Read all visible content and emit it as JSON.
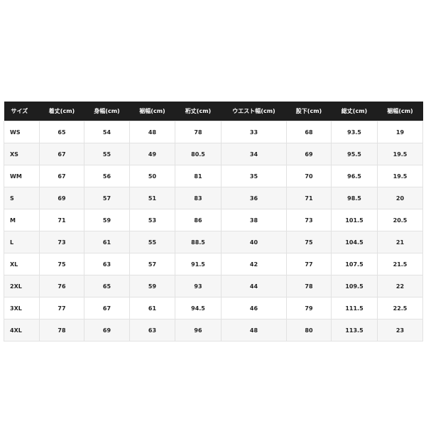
{
  "headers": [
    "サイズ",
    "着丈(cm)",
    "身幅(cm)",
    "裾幅(cm)",
    "裄丈(cm)",
    "ウエスト幅(cm)",
    "股下(cm)",
    "総丈(cm)",
    "裾幅(cm)"
  ],
  "rows": [
    [
      "WS",
      "65",
      "54",
      "48",
      "78",
      "33",
      "68",
      "93.5",
      "19"
    ],
    [
      "XS",
      "67",
      "55",
      "49",
      "80.5",
      "34",
      "69",
      "95.5",
      "19.5"
    ],
    [
      "WM",
      "67",
      "56",
      "50",
      "81",
      "35",
      "70",
      "96.5",
      "19.5"
    ],
    [
      "S",
      "69",
      "57",
      "51",
      "83",
      "36",
      "71",
      "98.5",
      "20"
    ],
    [
      "M",
      "71",
      "59",
      "53",
      "86",
      "38",
      "73",
      "101.5",
      "20.5"
    ],
    [
      "L",
      "73",
      "61",
      "55",
      "88.5",
      "40",
      "75",
      "104.5",
      "21"
    ],
    [
      "XL",
      "75",
      "63",
      "57",
      "91.5",
      "42",
      "77",
      "107.5",
      "21.5"
    ],
    [
      "2XL",
      "76",
      "65",
      "59",
      "93",
      "44",
      "78",
      "109.5",
      "22"
    ],
    [
      "3XL",
      "77",
      "67",
      "61",
      "94.5",
      "46",
      "79",
      "111.5",
      "22.5"
    ],
    [
      "4XL",
      "78",
      "69",
      "63",
      "96",
      "48",
      "80",
      "113.5",
      "23"
    ]
  ]
}
